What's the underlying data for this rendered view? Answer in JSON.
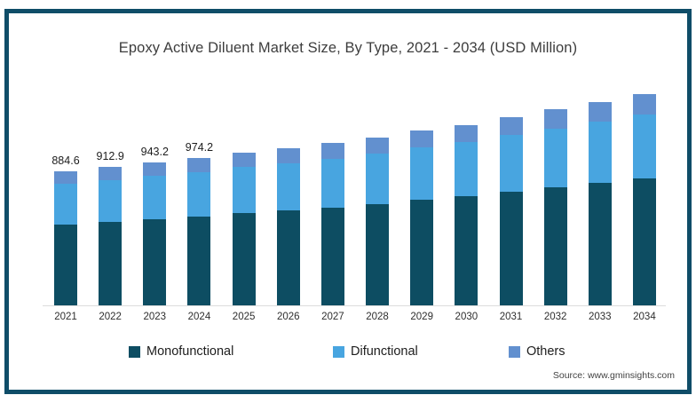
{
  "title": "Epoxy Active Diluent Market Size, By Type, 2021 - 2034 (USD Million)",
  "source": "Source: www.gminsights.com",
  "colors": {
    "frame_border": "#0f4d68",
    "axis_line": "#dcdcdc",
    "title_text": "#3d3d3d",
    "monofunctional": "#0d4d62",
    "difunctional": "#48a5e0",
    "others": "#6290cf"
  },
  "legend": {
    "entries": [
      "Monofunctional",
      "Difunctional",
      "Others"
    ]
  },
  "chart_data": {
    "type": "bar",
    "stacked": true,
    "title": "Epoxy Active Diluent Market Size, By Type, 2021 - 2034 (USD Million)",
    "xlabel": "",
    "ylabel": "USD Million",
    "grid": false,
    "legend_position": "bottom",
    "categories": [
      "2021",
      "2022",
      "2023",
      "2024",
      "2025",
      "2026",
      "2027",
      "2028",
      "2029",
      "2030",
      "2031",
      "2032",
      "2033",
      "2034"
    ],
    "totals": [
      884.6,
      912.9,
      943.2,
      974.2,
      1008,
      1038,
      1073,
      1109,
      1156,
      1191,
      1244,
      1292,
      1339,
      1392
    ],
    "visible_total_labels": [
      "884.6",
      "912.9",
      "943.2",
      "974.2"
    ],
    "series": [
      {
        "name": "Monofunctional",
        "color": "#0d4d62",
        "values": [
          533.4,
          550.5,
          568.7,
          587.4,
          607.8,
          625.9,
          647.0,
          668.7,
          697.1,
          718.2,
          750.1,
          779.1,
          807.4,
          839.4
        ]
      },
      {
        "name": "Difunctional",
        "color": "#48a5e0",
        "values": [
          266.3,
          274.8,
          283.9,
          293.2,
          303.4,
          312.4,
          323.0,
          333.8,
          348.0,
          358.5,
          374.4,
          388.9,
          403.0,
          419.0
        ]
      },
      {
        "name": "Others",
        "color": "#6290cf",
        "values": [
          84.9,
          87.6,
          90.6,
          93.6,
          96.8,
          99.7,
          103.0,
          106.5,
          110.9,
          114.3,
          119.5,
          124.0,
          128.6,
          133.6
        ]
      }
    ]
  }
}
